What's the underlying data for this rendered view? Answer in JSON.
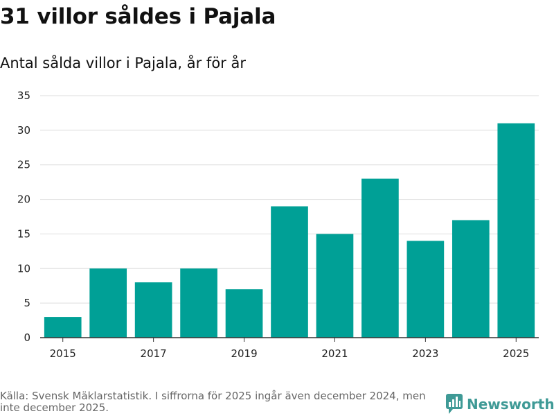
{
  "header": {
    "title": "31 villor såldes i Pajala",
    "subtitle": "Antal sålda villor i Pajala, år för år"
  },
  "footer": {
    "source": "Källa: Svensk Mäklarstatistik. I siffrorna för 2025 ingår även december 2024, men inte december 2025.",
    "brand": "Newsworthy"
  },
  "colors": {
    "bar": "#00a096",
    "grid": "#dddddd",
    "axis": "#333333",
    "brand": "#3f9a96"
  },
  "chart_data": {
    "type": "bar",
    "title": "31 villor såldes i Pajala",
    "subtitle": "Antal sålda villor i Pajala, år för år",
    "xlabel": "",
    "ylabel": "",
    "categories": [
      "2015",
      "2016",
      "2017",
      "2018",
      "2019",
      "2020",
      "2021",
      "2022",
      "2023",
      "2024",
      "2025"
    ],
    "values": [
      3,
      10,
      8,
      10,
      7,
      19,
      15,
      23,
      14,
      17,
      31
    ],
    "x_tick_labels": [
      "2015",
      "2017",
      "2019",
      "2021",
      "2023",
      "2025"
    ],
    "y_ticks": [
      0,
      5,
      10,
      15,
      20,
      25,
      30,
      35
    ],
    "ylim": [
      0,
      35
    ],
    "grid": true
  }
}
